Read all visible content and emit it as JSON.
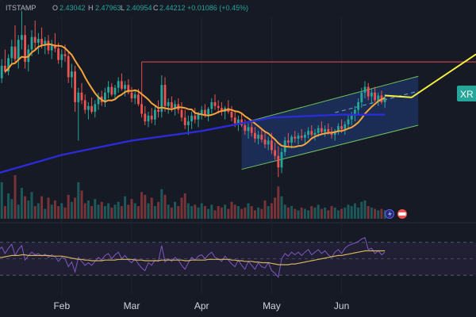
{
  "header": {
    "symbol_fragment": "ITSTAMP",
    "open_prefix": "O",
    "open": "2.43042",
    "high_prefix": "H",
    "high": "2.47963",
    "low_prefix": "L",
    "low": "2.40954",
    "close_prefix": "C",
    "close": "2.44212",
    "change": "+0.01086 (+0.45%)"
  },
  "price_tag": "XR",
  "colors": {
    "background": "#161a25",
    "bull": "#26a69a",
    "bear": "#ef5350",
    "ma_fast": "#f7a43b",
    "ma_slow": "#2b2bd8",
    "channel": "#6fbf5a",
    "projection": "#f5ef42",
    "resistance": "#c0434a",
    "rsi": "#7e57c2",
    "rsi_ma": "#d4b35a",
    "price_tag": "#26a69a"
  },
  "chart_data": {
    "type": "candlestick",
    "x_axis": {
      "tick_labels": [
        "Feb",
        "Mar",
        "Apr",
        "May",
        "Jun"
      ]
    },
    "bars_per_tick": 21,
    "first_tick_offset": 5,
    "candles": [
      [
        2.55,
        2.7,
        2.5,
        2.65
      ],
      [
        2.65,
        2.85,
        2.6,
        2.78
      ],
      [
        2.78,
        2.95,
        2.7,
        2.72
      ],
      [
        2.72,
        2.9,
        2.68,
        2.86
      ],
      [
        2.86,
        3.05,
        2.8,
        2.98
      ],
      [
        2.98,
        3.2,
        2.8,
        2.85
      ],
      [
        2.85,
        3.1,
        2.75,
        3.05
      ],
      [
        3.05,
        3.35,
        2.95,
        3.1
      ],
      [
        3.1,
        3.2,
        2.75,
        2.82
      ],
      [
        2.82,
        3.0,
        2.72,
        2.95
      ],
      [
        2.95,
        3.15,
        2.88,
        3.08
      ],
      [
        3.08,
        3.25,
        2.95,
        3.02
      ],
      [
        3.02,
        3.12,
        2.9,
        3.06
      ],
      [
        3.06,
        3.18,
        2.96,
        3.0
      ],
      [
        3.0,
        3.08,
        2.9,
        3.04
      ],
      [
        3.04,
        3.1,
        2.9,
        2.94
      ],
      [
        2.94,
        3.05,
        2.85,
        3.0
      ],
      [
        3.0,
        3.12,
        2.92,
        2.96
      ],
      [
        2.96,
        3.02,
        2.8,
        2.84
      ],
      [
        2.84,
        2.95,
        2.76,
        2.9
      ],
      [
        2.9,
        3.0,
        2.82,
        2.88
      ],
      [
        2.88,
        2.92,
        2.6,
        2.66
      ],
      [
        2.66,
        2.8,
        2.55,
        2.72
      ],
      [
        2.72,
        2.78,
        2.3,
        2.4
      ],
      [
        2.4,
        2.55,
        2.0,
        2.5
      ],
      [
        2.5,
        2.6,
        2.38,
        2.42
      ],
      [
        2.42,
        2.48,
        2.28,
        2.32
      ],
      [
        2.32,
        2.4,
        2.22,
        2.36
      ],
      [
        2.36,
        2.45,
        2.28,
        2.3
      ],
      [
        2.3,
        2.42,
        2.24,
        2.38
      ],
      [
        2.38,
        2.5,
        2.32,
        2.46
      ],
      [
        2.46,
        2.52,
        2.36,
        2.4
      ],
      [
        2.4,
        2.55,
        2.35,
        2.5
      ],
      [
        2.5,
        2.62,
        2.44,
        2.56
      ],
      [
        2.56,
        2.6,
        2.46,
        2.48
      ],
      [
        2.48,
        2.58,
        2.42,
        2.55
      ],
      [
        2.55,
        2.66,
        2.5,
        2.62
      ],
      [
        2.62,
        2.7,
        2.52,
        2.54
      ],
      [
        2.54,
        2.62,
        2.46,
        2.58
      ],
      [
        2.58,
        2.64,
        2.48,
        2.5
      ],
      [
        2.5,
        2.56,
        2.4,
        2.44
      ],
      [
        2.44,
        2.52,
        2.38,
        2.48
      ],
      [
        2.48,
        2.54,
        2.36,
        2.38
      ],
      [
        2.38,
        2.46,
        2.24,
        2.28
      ],
      [
        2.28,
        2.36,
        2.16,
        2.2
      ],
      [
        2.2,
        2.3,
        2.14,
        2.26
      ],
      [
        2.26,
        2.34,
        2.18,
        2.22
      ],
      [
        2.22,
        2.36,
        2.16,
        2.32
      ],
      [
        2.32,
        2.42,
        2.24,
        2.3
      ],
      [
        2.3,
        2.68,
        2.24,
        2.58
      ],
      [
        2.58,
        2.66,
        2.3,
        2.36
      ],
      [
        2.36,
        2.44,
        2.28,
        2.4
      ],
      [
        2.4,
        2.46,
        2.3,
        2.34
      ],
      [
        2.34,
        2.42,
        2.26,
        2.38
      ],
      [
        2.38,
        2.44,
        2.28,
        2.32
      ],
      [
        2.32,
        2.4,
        2.2,
        2.24
      ],
      [
        2.24,
        2.32,
        2.12,
        2.16
      ],
      [
        2.16,
        2.26,
        2.06,
        2.2
      ],
      [
        2.2,
        2.3,
        2.12,
        2.26
      ],
      [
        2.26,
        2.34,
        2.18,
        2.22
      ],
      [
        2.22,
        2.3,
        2.14,
        2.28
      ],
      [
        2.28,
        2.36,
        2.22,
        2.32
      ],
      [
        2.32,
        2.38,
        2.24,
        2.27
      ],
      [
        2.27,
        2.35,
        2.2,
        2.33
      ],
      [
        2.33,
        2.44,
        2.28,
        2.4
      ],
      [
        2.4,
        2.48,
        2.32,
        2.36
      ],
      [
        2.36,
        2.42,
        2.28,
        2.34
      ],
      [
        2.34,
        2.4,
        2.26,
        2.3
      ],
      [
        2.3,
        2.36,
        2.22,
        2.34
      ],
      [
        2.34,
        2.42,
        2.28,
        2.3
      ],
      [
        2.3,
        2.36,
        2.2,
        2.24
      ],
      [
        2.24,
        2.3,
        2.14,
        2.18
      ],
      [
        2.18,
        2.26,
        2.1,
        2.22
      ],
      [
        2.22,
        2.28,
        2.14,
        2.16
      ],
      [
        2.16,
        2.22,
        2.06,
        2.1
      ],
      [
        2.1,
        2.18,
        2.02,
        2.14
      ],
      [
        2.14,
        2.2,
        2.04,
        2.08
      ],
      [
        2.08,
        2.14,
        1.98,
        2.02
      ],
      [
        2.02,
        2.1,
        1.96,
        2.06
      ],
      [
        2.06,
        2.12,
        1.98,
        2.01
      ],
      [
        2.01,
        2.08,
        1.92,
        1.96
      ],
      [
        1.96,
        2.04,
        1.9,
        2.0
      ],
      [
        2.0,
        2.08,
        1.86,
        1.9
      ],
      [
        1.9,
        1.98,
        1.8,
        1.84
      ],
      [
        1.84,
        1.94,
        1.62,
        1.72
      ],
      [
        1.72,
        1.92,
        1.66,
        1.88
      ],
      [
        1.88,
        2.04,
        1.84,
        2.0
      ],
      [
        2.0,
        2.08,
        1.94,
        1.98
      ],
      [
        1.98,
        2.06,
        1.92,
        2.04
      ],
      [
        2.04,
        2.1,
        1.98,
        2.02
      ],
      [
        2.02,
        2.08,
        1.96,
        2.05
      ],
      [
        2.05,
        2.12,
        2.0,
        2.03
      ],
      [
        2.03,
        2.09,
        1.97,
        2.06
      ],
      [
        2.06,
        2.14,
        2.02,
        2.1
      ],
      [
        2.1,
        2.16,
        2.04,
        2.06
      ],
      [
        2.06,
        2.12,
        2.0,
        2.08
      ],
      [
        2.08,
        2.16,
        2.04,
        2.13
      ],
      [
        2.13,
        2.2,
        2.06,
        2.09
      ],
      [
        2.09,
        2.16,
        2.04,
        2.12
      ],
      [
        2.12,
        2.18,
        2.06,
        2.09
      ],
      [
        2.09,
        2.14,
        2.02,
        2.06
      ],
      [
        2.06,
        2.12,
        2.0,
        2.1
      ],
      [
        2.1,
        2.18,
        2.06,
        2.15
      ],
      [
        2.15,
        2.22,
        2.08,
        2.12
      ],
      [
        2.12,
        2.2,
        2.06,
        2.17
      ],
      [
        2.17,
        2.26,
        2.12,
        2.22
      ],
      [
        2.22,
        2.3,
        2.16,
        2.26
      ],
      [
        2.26,
        2.36,
        2.2,
        2.32
      ],
      [
        2.32,
        2.44,
        2.26,
        2.4
      ],
      [
        2.4,
        2.55,
        2.34,
        2.5
      ],
      [
        2.5,
        2.62,
        2.44,
        2.56
      ],
      [
        2.56,
        2.6,
        2.42,
        2.46
      ],
      [
        2.46,
        2.54,
        2.38,
        2.5
      ],
      [
        2.5,
        2.56,
        2.4,
        2.42
      ],
      [
        2.42,
        2.5,
        2.36,
        2.47
      ],
      [
        2.47,
        2.52,
        2.38,
        2.4
      ],
      [
        2.4,
        2.48,
        2.34,
        2.44
      ]
    ],
    "volume": [
      120,
      260,
      90,
      180,
      140,
      310,
      100,
      220,
      160,
      130,
      190,
      90,
      110,
      160,
      70,
      150,
      100,
      130,
      90,
      110,
      80,
      170,
      120,
      150,
      260,
      200,
      110,
      130,
      90,
      140,
      100,
      120,
      90,
      110,
      80,
      100,
      120,
      90,
      160,
      100,
      140,
      110,
      90,
      190,
      170,
      110,
      150,
      90,
      120,
      210,
      170,
      100,
      80,
      120,
      90,
      150,
      180,
      110,
      90,
      100,
      80,
      110,
      90,
      70,
      100,
      60,
      90,
      80,
      100,
      70,
      120,
      100,
      90,
      70,
      80,
      110,
      90,
      60,
      80,
      70,
      130,
      90,
      110,
      150,
      230,
      160,
      100,
      80,
      90,
      70,
      60,
      80,
      70,
      60,
      90,
      80,
      100,
      70,
      80,
      60,
      90,
      80,
      60,
      70,
      80,
      100,
      90,
      110,
      80,
      120,
      130,
      90,
      80,
      70,
      60,
      70,
      60
    ],
    "moving_averages": [
      {
        "period": 50
      },
      {
        "period": 200,
        "values_at_ticks": [
          1.85,
          2.0,
          2.1,
          2.24,
          2.27
        ]
      }
    ],
    "resistance_level": 2.82,
    "ascending_channel": {
      "upper": [
        2.18,
        2.67
      ],
      "lower": [
        1.7,
        2.16
      ]
    },
    "projection": [
      2.45,
      2.9
    ],
    "rsi": {
      "values": [
        62,
        68,
        58,
        66,
        72,
        55,
        64,
        70,
        48,
        55,
        60,
        56,
        58,
        54,
        57,
        52,
        56,
        53,
        46,
        52,
        50,
        38,
        45,
        30,
        52,
        46,
        40,
        44,
        40,
        46,
        52,
        48,
        55,
        58,
        50,
        56,
        60,
        50,
        55,
        48,
        44,
        50,
        42,
        36,
        32,
        44,
        40,
        48,
        46,
        70,
        45,
        50,
        46,
        52,
        48,
        40,
        34,
        44,
        52,
        48,
        54,
        56,
        50,
        56,
        60,
        52,
        50,
        46,
        54,
        48,
        42,
        38,
        48,
        40,
        34,
        46,
        40,
        34,
        44,
        38,
        36,
        44,
        32,
        28,
        22,
        50,
        58,
        54,
        60,
        56,
        60,
        55,
        60,
        64,
        56,
        60,
        64,
        58,
        62,
        56,
        52,
        60,
        64,
        58,
        66,
        70,
        72,
        74,
        76,
        80,
        82,
        64,
        66,
        58,
        62,
        56,
        60
      ],
      "ma": [
        52,
        52,
        53,
        54,
        55,
        55,
        55,
        56,
        56,
        55,
        55,
        55,
        55,
        55,
        55,
        55,
        54,
        54,
        54,
        54,
        53,
        52,
        51,
        50,
        49,
        49,
        48,
        48,
        47,
        47,
        47,
        47,
        48,
        48,
        48,
        48,
        49,
        49,
        49,
        49,
        49,
        48,
        48,
        48,
        47,
        47,
        47,
        47,
        47,
        48,
        48,
        48,
        48,
        48,
        48,
        48,
        47,
        47,
        48,
        48,
        48,
        48,
        48,
        49,
        49,
        49,
        49,
        49,
        49,
        49,
        48,
        48,
        47,
        47,
        46,
        46,
        46,
        45,
        45,
        44,
        44,
        44,
        43,
        42,
        41,
        41,
        41,
        41,
        42,
        42,
        43,
        44,
        45,
        46,
        47,
        48,
        49,
        50,
        51,
        52,
        53,
        54,
        55,
        55,
        56,
        57,
        58,
        59,
        60,
        61,
        62,
        62,
        62,
        62,
        62,
        62,
        62
      ]
    }
  }
}
